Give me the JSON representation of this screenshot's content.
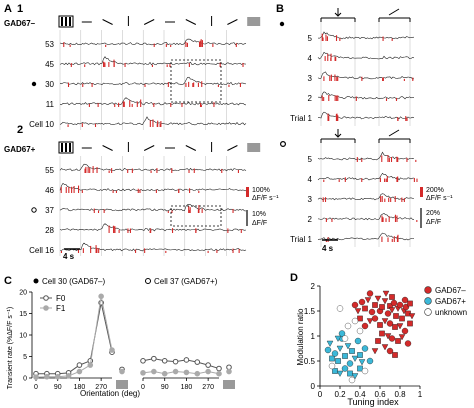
{
  "panelA": {
    "letter": "A",
    "row1": {
      "number": "1",
      "group": "GAD67–",
      "cells": [
        "53",
        "45",
        "30",
        "11",
        "Cell 10"
      ],
      "marked": "30"
    },
    "row2": {
      "number": "2",
      "group": "GAD67+",
      "cells": [
        "55",
        "46",
        "37",
        "28",
        "Cell 16"
      ],
      "marked": "37"
    },
    "scale_rate_pct": "100%",
    "scale_rate_unit": "ΔF/F s⁻¹",
    "scale_df_pct": "10%",
    "scale_df_unit": "ΔF/F",
    "time_scale": "4 s",
    "orientation_marks": [
      "grating",
      "—",
      "╲",
      "|",
      "╱",
      "—",
      "╲",
      "|",
      "╱",
      "blank"
    ]
  },
  "panelB": {
    "letter": "B",
    "top_trials": [
      "5",
      "4",
      "3",
      "2",
      "Trial 1"
    ],
    "bottom_trials": [
      "5",
      "4",
      "3",
      "2",
      "Trial 1"
    ],
    "scale_rate_pct": "200%",
    "scale_rate_unit": "ΔF/F s⁻¹",
    "scale_df_pct": "20%",
    "scale_df_unit": "ΔF/F",
    "time_scale": "4 s"
  },
  "panelC": {
    "letter": "C",
    "ylabel": "Transient rate (%ΔF/F s⁻¹)",
    "xlabel": "Orientation (deg)",
    "colors": {
      "F0": "#555555",
      "F1": "#aaaaaa"
    }
  },
  "panelD": {
    "letter": "D",
    "colors": {
      "gad_minus": "#d42a2a",
      "gad_plus": "#3bb8d8",
      "unknown": "#ffffff"
    }
  },
  "chart_data": [
    {
      "type": "line",
      "title": "Cell 30 (GAD67–)",
      "x": [
        0,
        45,
        90,
        135,
        180,
        225,
        270,
        315
      ],
      "xticks": [
        "0",
        "90",
        "180",
        "270"
      ],
      "yticks": [
        "0",
        "5",
        "10",
        "15",
        "20"
      ],
      "ylim": [
        0,
        20
      ],
      "xlim": [
        0,
        315
      ],
      "series": [
        {
          "name": "F0",
          "values": [
            1.0,
            1.0,
            1.0,
            1.2,
            3.0,
            4.0,
            17.5,
            6.0
          ],
          "extra": 2.0
        },
        {
          "name": "F1",
          "values": [
            0.2,
            0.3,
            0.3,
            0.5,
            1.5,
            3.0,
            19.0,
            6.5
          ],
          "extra": 1.5
        }
      ],
      "legend": "top-left"
    },
    {
      "type": "line",
      "title": "Cell 37 (GAD67+)",
      "x": [
        0,
        45,
        90,
        135,
        180,
        225,
        270,
        315
      ],
      "xticks": [
        "0",
        "90",
        "180",
        "270"
      ],
      "ylim": [
        0,
        20
      ],
      "xlim": [
        0,
        315
      ],
      "series": [
        {
          "name": "F0",
          "values": [
            4.0,
            4.5,
            4.0,
            3.8,
            4.2,
            3.7,
            3.0,
            2.2
          ],
          "extra": 2.5
        },
        {
          "name": "F1",
          "values": [
            1.2,
            1.5,
            1.0,
            1.5,
            1.3,
            1.0,
            1.5,
            1.0
          ],
          "extra": 1.5
        }
      ]
    },
    {
      "type": "scatter",
      "xlabel": "Tuning index",
      "ylabel": "Modulation ratio",
      "xlim": [
        0,
        1
      ],
      "ylim": [
        0,
        2
      ],
      "xticks": [
        "0",
        "0.2",
        "0.4",
        "0.6",
        "0.8",
        "1"
      ],
      "yticks": [
        "0",
        "0.5",
        "1",
        "1.5",
        "2"
      ],
      "legend": "top-right",
      "series": [
        {
          "name": "GAD67–",
          "points": [
            [
              0.42,
              1.68
            ],
            [
              0.45,
              1.55
            ],
            [
              0.48,
              1.72
            ],
            [
              0.52,
              1.48
            ],
            [
              0.55,
              1.62
            ],
            [
              0.58,
              1.75
            ],
            [
              0.6,
              1.5
            ],
            [
              0.62,
              1.58
            ],
            [
              0.65,
              1.7
            ],
            [
              0.68,
              1.45
            ],
            [
              0.7,
              1.6
            ],
            [
              0.72,
              1.52
            ],
            [
              0.74,
              1.66
            ],
            [
              0.76,
              1.4
            ],
            [
              0.78,
              1.55
            ],
            [
              0.8,
              1.62
            ],
            [
              0.82,
              1.35
            ],
            [
              0.84,
              1.5
            ],
            [
              0.86,
              1.58
            ],
            [
              0.88,
              1.45
            ],
            [
              0.5,
              1.3
            ],
            [
              0.55,
              1.35
            ],
            [
              0.6,
              1.22
            ],
            [
              0.65,
              1.3
            ],
            [
              0.7,
              1.25
            ],
            [
              0.75,
              1.18
            ],
            [
              0.8,
              1.2
            ],
            [
              0.85,
              1.1
            ],
            [
              0.9,
              1.25
            ],
            [
              0.92,
              1.4
            ],
            [
              0.45,
              1.2
            ],
            [
              0.4,
              1.35
            ],
            [
              0.38,
              1.5
            ],
            [
              0.35,
              1.62
            ],
            [
              0.62,
              1.05
            ],
            [
              0.68,
              1.0
            ],
            [
              0.72,
              0.95
            ],
            [
              0.78,
              0.9
            ],
            [
              0.82,
              0.98
            ],
            [
              0.88,
              0.85
            ],
            [
              0.58,
              0.9
            ],
            [
              0.65,
              0.78
            ],
            [
              0.7,
              0.7
            ],
            [
              0.75,
              0.62
            ],
            [
              0.55,
              0.7
            ],
            [
              0.85,
              1.72
            ],
            [
              0.9,
              1.65
            ],
            [
              0.66,
              1.85
            ],
            [
              0.5,
              1.85
            ],
            [
              0.72,
              1.78
            ]
          ]
        },
        {
          "name": "GAD67+",
          "points": [
            [
              0.08,
              0.72
            ],
            [
              0.12,
              0.55
            ],
            [
              0.1,
              0.85
            ],
            [
              0.15,
              0.65
            ],
            [
              0.18,
              0.5
            ],
            [
              0.2,
              0.75
            ],
            [
              0.22,
              0.95
            ],
            [
              0.25,
              0.6
            ],
            [
              0.28,
              0.8
            ],
            [
              0.3,
              0.45
            ],
            [
              0.32,
              0.7
            ],
            [
              0.35,
              0.55
            ],
            [
              0.38,
              0.9
            ],
            [
              0.4,
              0.62
            ],
            [
              0.42,
              0.48
            ],
            [
              0.45,
              0.75
            ],
            [
              0.15,
              0.3
            ],
            [
              0.2,
              0.25
            ],
            [
              0.25,
              0.35
            ],
            [
              0.3,
              0.25
            ],
            [
              0.35,
              0.2
            ],
            [
              0.22,
              1.05
            ],
            [
              0.4,
              0.35
            ],
            [
              0.18,
              0.95
            ],
            [
              0.5,
              0.5
            ]
          ]
        },
        {
          "name": "unknown",
          "points": [
            [
              0.2,
              1.55
            ],
            [
              0.28,
              1.2
            ],
            [
              0.35,
              1.3
            ],
            [
              0.12,
              0.4
            ],
            [
              0.32,
              0.12
            ],
            [
              0.25,
              0.95
            ],
            [
              0.4,
              1.1
            ],
            [
              0.45,
              0.3
            ]
          ]
        }
      ]
    }
  ]
}
